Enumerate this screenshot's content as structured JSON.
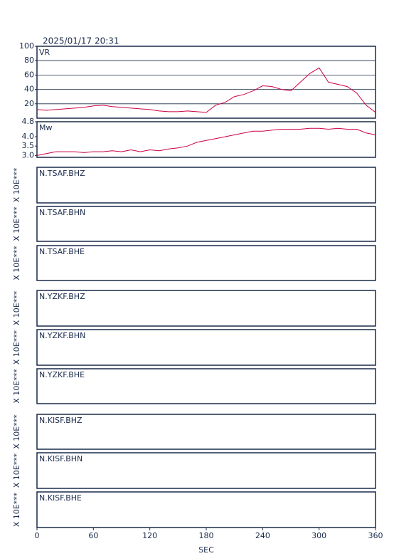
{
  "timestamp": "2025/01/17 20:31",
  "chart_data": [
    {
      "type": "line",
      "title": "VR",
      "color": "#cc0044",
      "grid": true,
      "x": [
        0,
        10,
        20,
        30,
        40,
        50,
        60,
        70,
        80,
        90,
        100,
        110,
        120,
        130,
        140,
        150,
        160,
        170,
        180,
        190,
        200,
        210,
        220,
        230,
        240,
        250,
        260,
        270,
        280,
        290,
        300,
        310,
        320,
        330,
        340,
        350,
        360
      ],
      "values": [
        12,
        11,
        12,
        13,
        14,
        15,
        17,
        18,
        16,
        15,
        14,
        13,
        12,
        10,
        9,
        9,
        10,
        9,
        8,
        18,
        22,
        30,
        33,
        38,
        45,
        44,
        40,
        38,
        50,
        62,
        70,
        50,
        47,
        44,
        35,
        18,
        8
      ],
      "xlim": [
        0,
        360
      ],
      "ylim": [
        0,
        100
      ],
      "yticks": [
        20,
        40,
        60,
        80,
        100
      ]
    },
    {
      "type": "line",
      "title": "Mw",
      "color": "#cc0044",
      "grid": false,
      "x": [
        0,
        10,
        20,
        30,
        40,
        50,
        60,
        70,
        80,
        90,
        100,
        110,
        120,
        130,
        140,
        150,
        160,
        170,
        180,
        190,
        200,
        210,
        220,
        230,
        240,
        250,
        260,
        270,
        280,
        290,
        300,
        310,
        320,
        330,
        340,
        350,
        360
      ],
      "values": [
        3.0,
        3.1,
        3.2,
        3.2,
        3.2,
        3.15,
        3.2,
        3.2,
        3.25,
        3.2,
        3.3,
        3.2,
        3.3,
        3.25,
        3.35,
        3.4,
        3.5,
        3.7,
        3.8,
        3.9,
        4.0,
        4.1,
        4.2,
        4.3,
        4.3,
        4.35,
        4.4,
        4.4,
        4.4,
        4.45,
        4.45,
        4.4,
        4.45,
        4.4,
        4.4,
        4.2,
        4.1
      ],
      "xlim": [
        0,
        360
      ],
      "ylim": [
        2.9,
        4.8
      ],
      "yticks": [
        {
          "value": 3,
          "label": "3.0"
        },
        3.5,
        {
          "value": 4,
          "label": "4.0"
        },
        4.8
      ]
    },
    {
      "type": "line",
      "title": "N.TSAF.BHZ",
      "ylabel": "X 10E***"
    },
    {
      "type": "line",
      "title": "N.TSAF.BHN",
      "ylabel": "X 10E***"
    },
    {
      "type": "line",
      "title": "N.TSAF.BHE",
      "ylabel": "X 10E***"
    },
    {
      "type": "line",
      "title": "N.YZKF.BHZ",
      "ylabel": "X 10E***"
    },
    {
      "type": "line",
      "title": "N.YZKF.BHN",
      "ylabel": "X 10E***"
    },
    {
      "type": "line",
      "title": "N.YZKF.BHE",
      "ylabel": "X 10E***"
    },
    {
      "type": "line",
      "title": "N.KISF.BHZ",
      "ylabel": "X 10E***"
    },
    {
      "type": "line",
      "title": "N.KISF.BHN",
      "ylabel": "X 10E***"
    },
    {
      "type": "line",
      "title": "N.KISF.BHE",
      "ylabel": "X 10E***",
      "xlabel": "SEC",
      "xlim": [
        0,
        360
      ],
      "xticks": [
        0,
        60,
        120,
        180,
        240,
        300,
        360
      ]
    }
  ]
}
